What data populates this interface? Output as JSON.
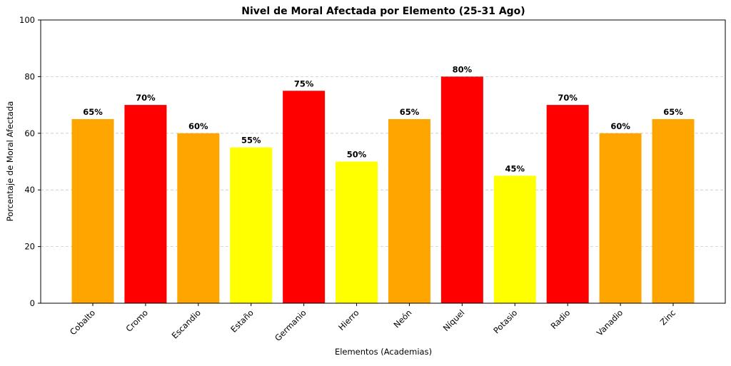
{
  "chart_data": {
    "type": "bar",
    "title": "Nivel de Moral Afectada por Elemento (25-31 Ago)",
    "xlabel": "Elementos (Academias)",
    "ylabel": "Porcentaje de Moral Afectada",
    "categories": [
      "Cobalto",
      "Cromo",
      "Escandio",
      "Estaño",
      "Germanio",
      "Hierro",
      "Neón",
      "Níquel",
      "Potasio",
      "Radio",
      "Vanadio",
      "Zinc"
    ],
    "values": [
      65,
      70,
      60,
      55,
      75,
      50,
      65,
      80,
      45,
      70,
      60,
      65
    ],
    "data_labels": [
      "65%",
      "70%",
      "60%",
      "55%",
      "75%",
      "50%",
      "65%",
      "80%",
      "45%",
      "70%",
      "60%",
      "65%"
    ],
    "bar_colors": [
      "#FFA500",
      "#FF0000",
      "#FFA500",
      "#FFFF00",
      "#FF0000",
      "#FFFF00",
      "#FFA500",
      "#FF0000",
      "#FFFF00",
      "#FF0000",
      "#FFA500",
      "#FFA500"
    ],
    "ylim": [
      0,
      100
    ],
    "yticks": [
      0,
      20,
      40,
      60,
      80,
      100
    ],
    "grid": "horizontal dashed",
    "legend": "none"
  }
}
